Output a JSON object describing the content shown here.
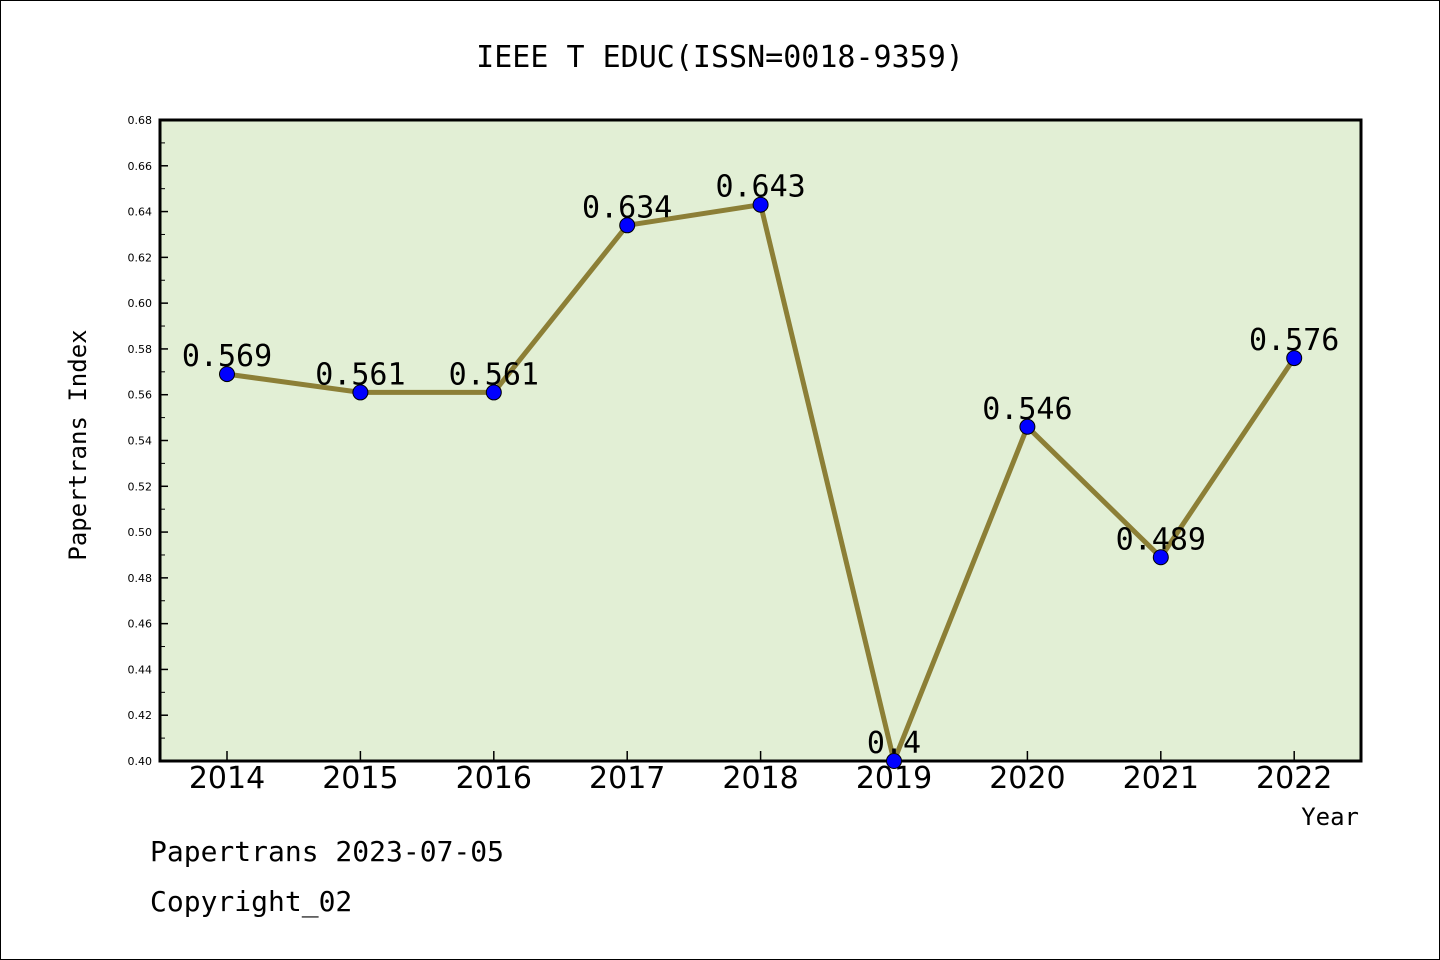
{
  "chart_data": {
    "type": "line",
    "title": "IEEE T EDUC(ISSN=0018-9359)",
    "xlabel": "Year",
    "ylabel": "Papertrans Index",
    "categories": [
      "2014",
      "2015",
      "2016",
      "2017",
      "2018",
      "2019",
      "2020",
      "2021",
      "2022"
    ],
    "values": [
      0.569,
      0.561,
      0.561,
      0.634,
      0.643,
      0.4,
      0.546,
      0.489,
      0.576
    ],
    "data_labels": [
      "0.569",
      "0.561",
      "0.561",
      "0.634",
      "0.643",
      "0.4",
      "0.546",
      "0.489",
      "0.576"
    ],
    "ylim": [
      0.4,
      0.68
    ],
    "yticks": [
      "0.40",
      "0.42",
      "0.44",
      "0.46",
      "0.48",
      "0.50",
      "0.52",
      "0.54",
      "0.56",
      "0.58",
      "0.60",
      "0.62",
      "0.64",
      "0.66",
      "0.68"
    ],
    "grid": false,
    "colors": {
      "plot_background": "#e2efd5",
      "line": "#8c7f36",
      "marker": "#0000ff"
    }
  },
  "footer": {
    "line1": "Papertrans 2023-07-05",
    "line2": "Copyright_02"
  }
}
